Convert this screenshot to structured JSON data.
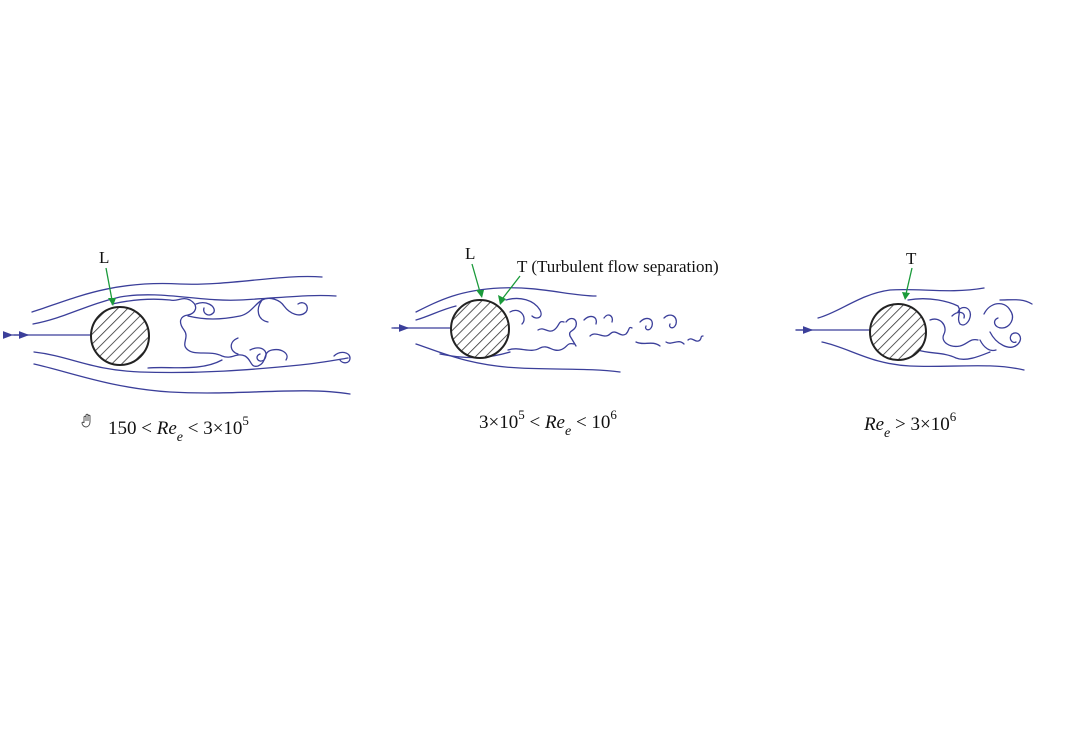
{
  "panels": [
    {
      "caption": {
        "pre": "150 < ",
        "re": "Re",
        "sub": "e",
        "post": " < 3×10",
        "sup": "5",
        "tail": ""
      },
      "labels": [
        "L"
      ]
    },
    {
      "caption": {
        "pre": "3×10",
        "presup": "5",
        "mid": " < ",
        "re": "Re",
        "sub": "e",
        "post": " < 10",
        "sup": "6"
      },
      "labels": [
        "L",
        "T (Turbulent flow separation)"
      ]
    },
    {
      "caption": {
        "re": "Re",
        "sub": "e",
        "post": " > 3×10",
        "sup": "6"
      },
      "labels": [
        "T"
      ]
    }
  ],
  "colors": {
    "streamline": "#3b3f9a",
    "pointer": "#1a9a3a",
    "cylinder": "#222222"
  },
  "icons": [
    "hand-cursor-icon"
  ]
}
